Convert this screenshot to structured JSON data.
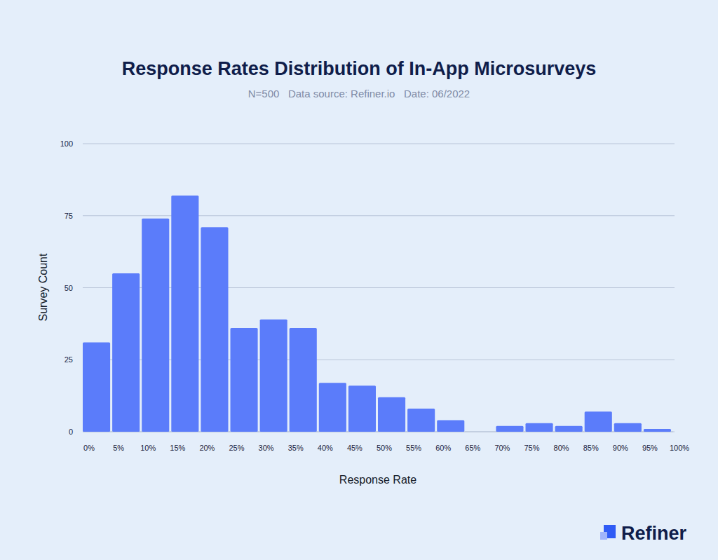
{
  "chart_data": {
    "type": "histogram",
    "title": "Response Rates Distribution of In-App Microsurveys",
    "subtitle": "N=500   Data source: Refiner.io   Date: 06/2022",
    "x_label": "Response Rate",
    "y_label": "Survey Count",
    "brand": "Refiner",
    "bins": [
      0,
      5,
      10,
      15,
      20,
      25,
      30,
      35,
      40,
      45,
      50,
      55,
      60,
      65,
      70,
      75,
      80,
      85,
      90,
      95,
      100
    ],
    "values": [
      31,
      55,
      74,
      82,
      71,
      36,
      39,
      36,
      17,
      16,
      12,
      8,
      4,
      0,
      2,
      3,
      2,
      7,
      3,
      1
    ],
    "color": "#5b7cfa",
    "xlim": [
      0,
      100
    ],
    "xticks": [
      {
        "value": 0,
        "label": "0%"
      },
      {
        "value": 5,
        "label": "5%"
      },
      {
        "value": 10,
        "label": "10%"
      },
      {
        "value": 15,
        "label": "15%"
      },
      {
        "value": 20,
        "label": "20%"
      },
      {
        "value": 25,
        "label": "25%"
      },
      {
        "value": 30,
        "label": "30%"
      },
      {
        "value": 35,
        "label": "35%"
      },
      {
        "value": 40,
        "label": "40%"
      },
      {
        "value": 45,
        "label": "45%"
      },
      {
        "value": 50,
        "label": "50%"
      },
      {
        "value": 55,
        "label": "55%"
      },
      {
        "value": 60,
        "label": "60%"
      },
      {
        "value": 65,
        "label": "65%"
      },
      {
        "value": 70,
        "label": "70%"
      },
      {
        "value": 75,
        "label": "75%"
      },
      {
        "value": 80,
        "label": "80%"
      },
      {
        "value": 85,
        "label": "85%"
      },
      {
        "value": 90,
        "label": "90%"
      },
      {
        "value": 95,
        "label": "95%"
      },
      {
        "value": 100,
        "label": "100%"
      }
    ],
    "ylim": [
      0,
      100
    ],
    "yticks": [
      0,
      25,
      50,
      75,
      100
    ],
    "grid": true
  }
}
